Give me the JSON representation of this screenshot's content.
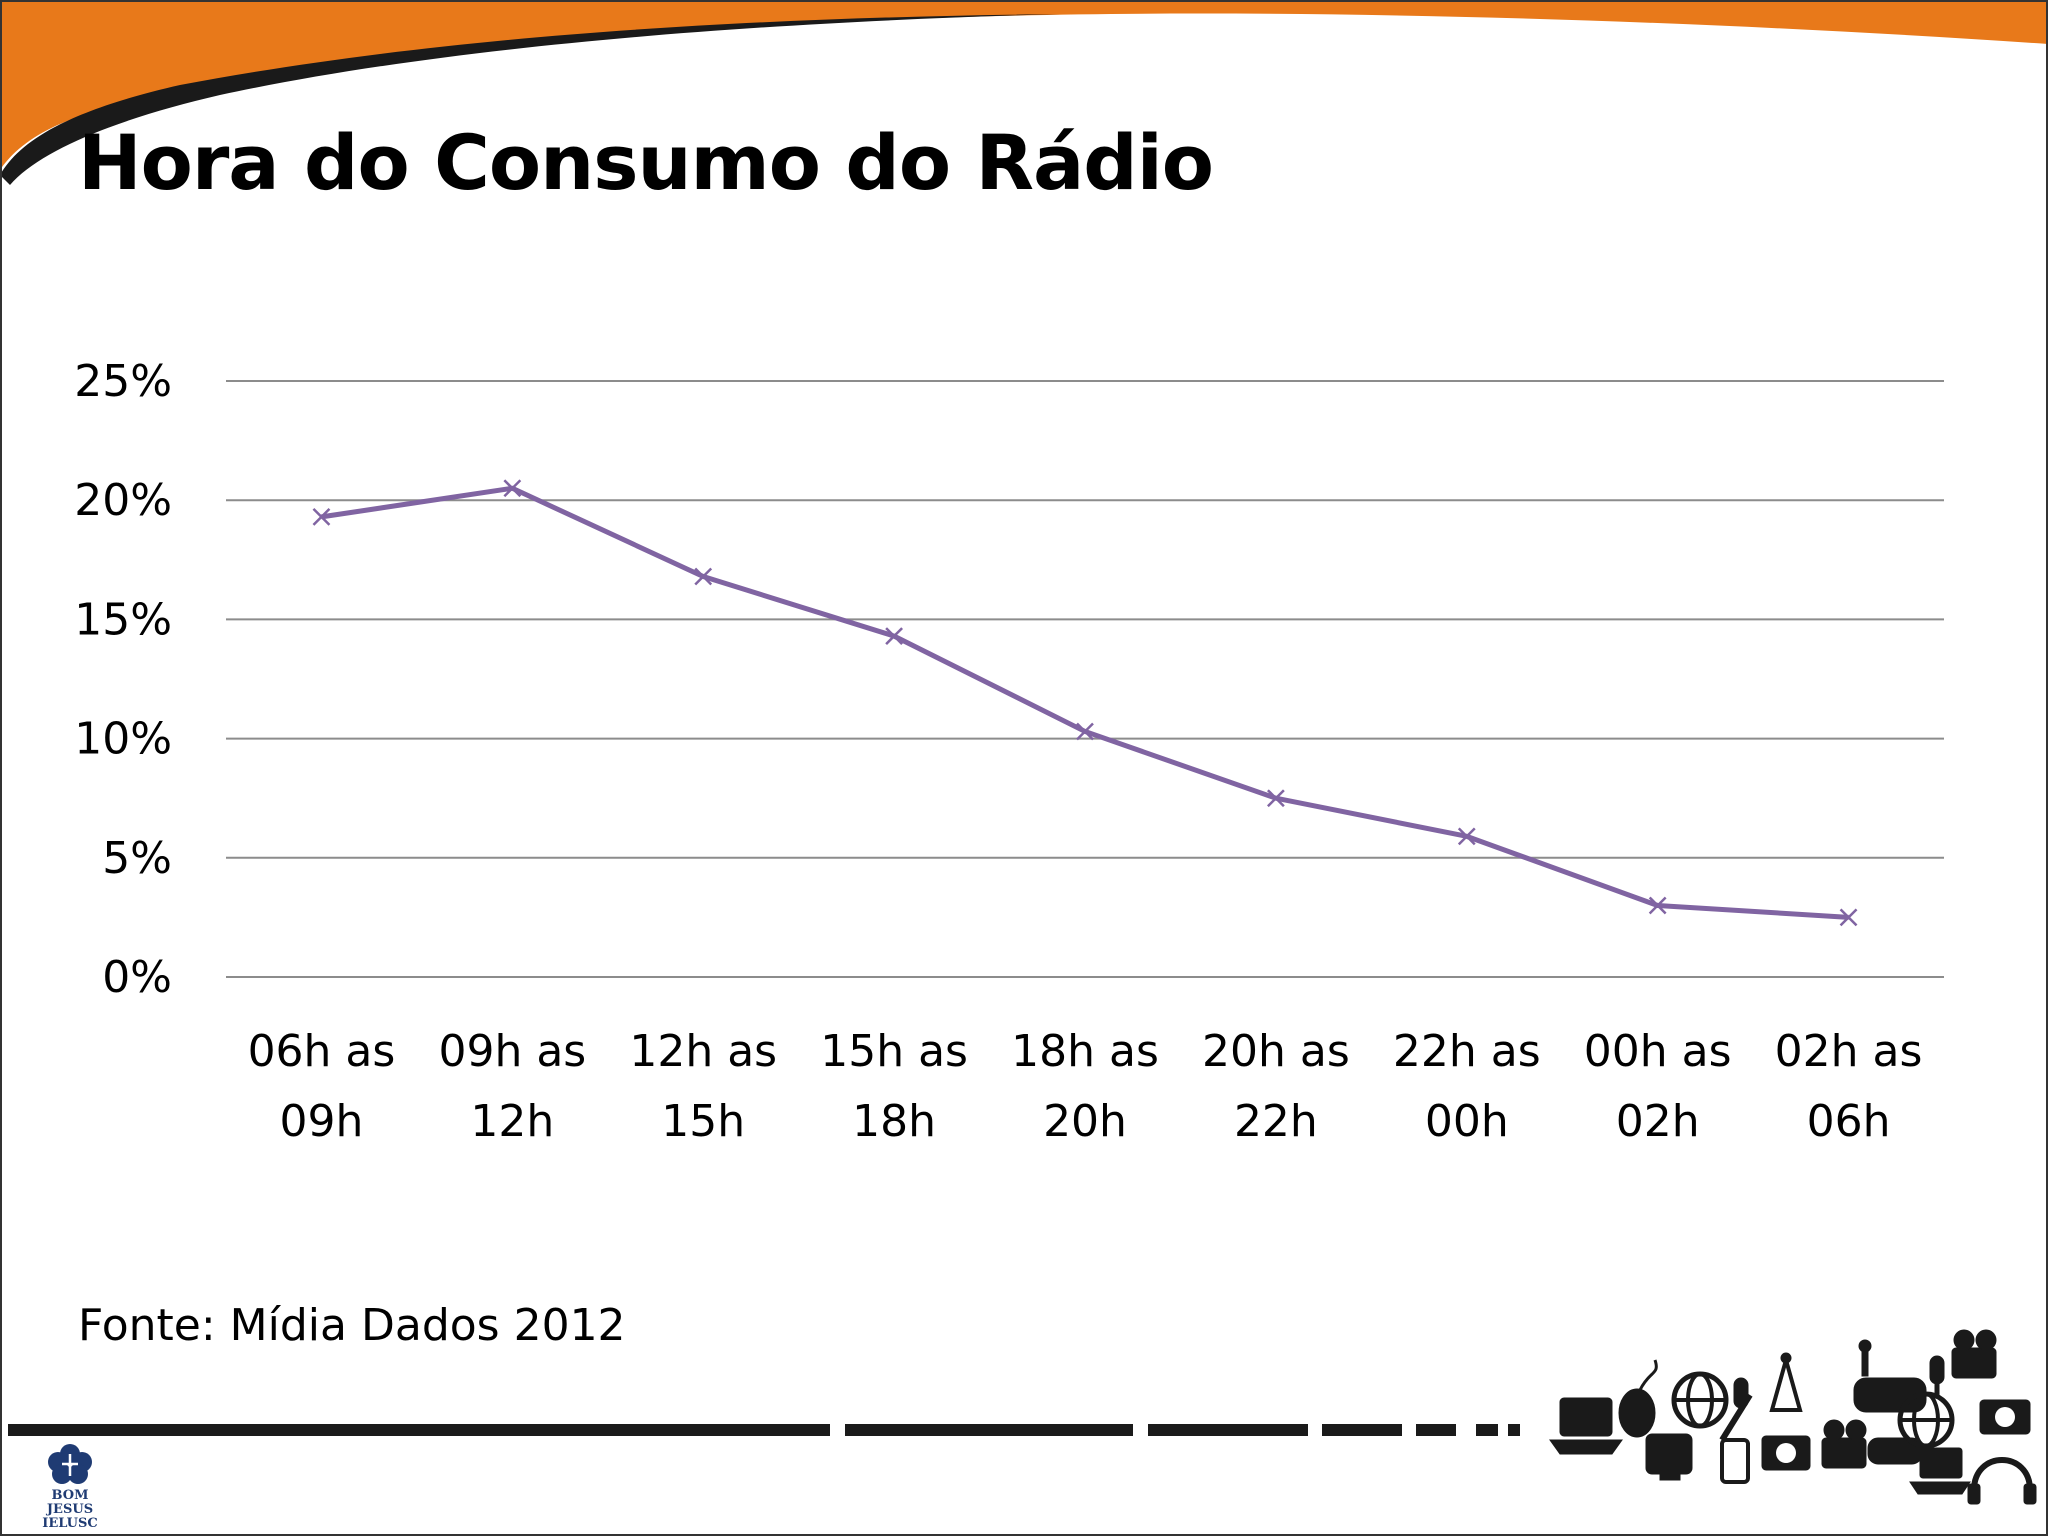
{
  "slide": {
    "title": "Hora do Consumo do Rádio",
    "source": "Fonte: Mídia Dados 2012",
    "logo_text": "BOM JESUS\nIELUSC",
    "accent_color": "#E8791A",
    "line_color": "#8064A2"
  },
  "chart_data": {
    "type": "line",
    "title": "",
    "xlabel": "",
    "ylabel": "",
    "categories": [
      [
        "06h as",
        "09h"
      ],
      [
        "09h as",
        "12h"
      ],
      [
        "12h as",
        "15h"
      ],
      [
        "15h as",
        "18h"
      ],
      [
        "18h as",
        "20h"
      ],
      [
        "20h as",
        "22h"
      ],
      [
        "22h as",
        "00h"
      ],
      [
        "00h as",
        "02h"
      ],
      [
        "02h as",
        "06h"
      ]
    ],
    "series": [
      {
        "values": [
          19.3,
          20.5,
          16.8,
          14.3,
          10.3,
          7.5,
          5.9,
          3.0,
          2.5
        ]
      }
    ],
    "yticks": [
      "0%",
      "5%",
      "10%",
      "15%",
      "20%",
      "25%"
    ],
    "ylim": [
      0,
      25
    ],
    "grid": true,
    "legend": "none",
    "marker": "x"
  }
}
